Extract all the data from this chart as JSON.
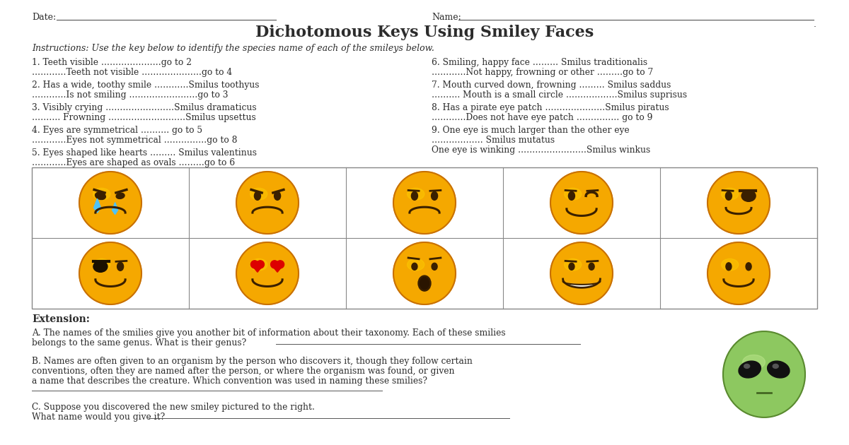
{
  "title": "Dichotomous Keys Using Smiley Faces",
  "date_label": "Date:",
  "name_label": "Name:",
  "instructions": "Instructions: Use the key below to identify the species name of each of the smileys below.",
  "left_keys": [
    [
      "1. Teeth visible …………………go to 2",
      "…………Teeth not visible …………………go to 4"
    ],
    [
      "2. Has a wide, toothy smile …………Smilus toothyus",
      "…………Is not smiling ……………………go to 3"
    ],
    [
      "3. Visibly crying ……………………Smilus dramaticus",
      "………. Frowning ………………………Smilus upsettus"
    ],
    [
      "4. Eyes are symmetrical ………. go to 5",
      "…………Eyes not symmetrical ……………go to 8"
    ],
    [
      "5. Eyes shaped like hearts ……… Smilus valentinus",
      "…………Eyes are shaped as ovals ………go to 6"
    ]
  ],
  "right_keys": [
    [
      "6. Smiling, happy face ……… Smilus traditionalis",
      "…………Not happy, frowning or other ………go to 7"
    ],
    [
      "7. Mouth curved down, frowning ……… Smilus saddus",
      "………. Mouth is a small circle ………………Smilus suprisus"
    ],
    [
      "8. Has a pirate eye patch …………………Smilus piratus",
      "…………Does not have eye patch …………… go to 9"
    ],
    [
      "9. One eye is much larger than the other eye",
      "……………… Smilus mutatus",
      "One eye is winking ……………………Smilus winkus"
    ]
  ],
  "extension_title": "Extension:",
  "ext_a_line1": "A. The names of the smilies give you another bit of information about their taxonomy. Each of these smilies",
  "ext_a_line2": "belongs to the same genus. What is their genus?",
  "ext_b_line1": "B. Names are often given to an organism by the person who discovers it, though they follow certain",
  "ext_b_line2": "conventions, often they are named after the person, or where the organism was found, or given",
  "ext_b_line3": "a name that describes the creature. Which convention was used in naming these smilies?",
  "ext_c_line1": "C. Suppose you discovered the new smiley pictured to the right.",
  "ext_c_line2": "What name would you give it?",
  "background_color": "#ffffff",
  "text_color": "#2c2c2c"
}
